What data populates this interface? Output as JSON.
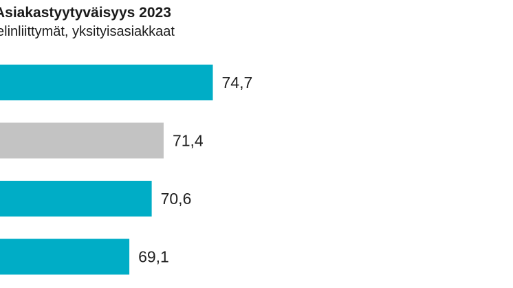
{
  "chart_data": {
    "type": "bar",
    "orientation": "horizontal",
    "title": "Asiakastyytyväisyys 2023",
    "subtitle": "elinliittymät, yksityisasiakkaat",
    "values": [
      74.7,
      71.4,
      70.6,
      69.1
    ],
    "value_labels": [
      "74,7",
      "71,4",
      "70,6",
      "69,1"
    ],
    "bar_colors": [
      "#00adc6",
      "#c3c3c3",
      "#00adc6",
      "#00adc6"
    ],
    "xlim": [
      0,
      75
    ],
    "grid": false
  }
}
